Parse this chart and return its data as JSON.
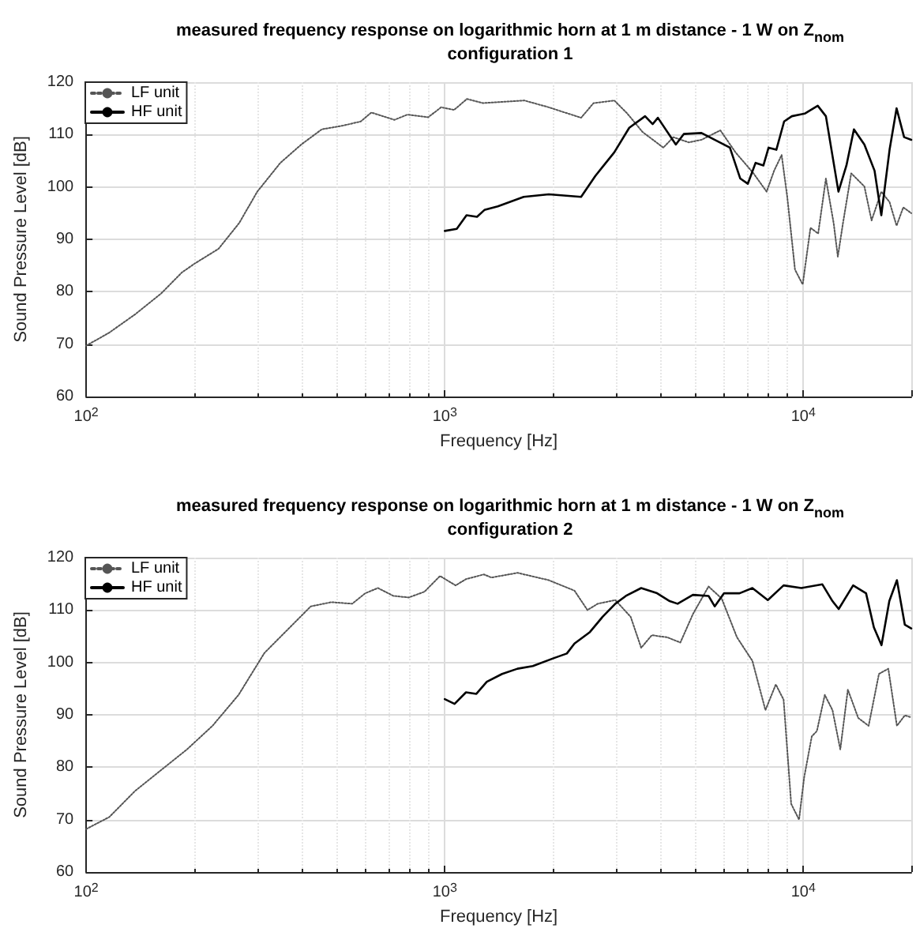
{
  "chart_data": [
    {
      "type": "line",
      "title": "measured frequency response on logarithmic horn at 1 m distance - 1 W on Z$_{nom}$",
      "subtitle": "configuration 1",
      "xlabel": "Frequency [Hz]",
      "ylabel": "Sound Pressure Level [dB]",
      "log": "x",
      "xlim": [
        100,
        20000
      ],
      "xticks": [
        {
          "value": 100,
          "label": "10$^{2}$"
        },
        {
          "value": 1000,
          "label": "10$^{3}$"
        },
        {
          "value": 10000,
          "label": "10$^{4}$"
        }
      ],
      "ylim": [
        60,
        120
      ],
      "yticks": [
        60,
        70,
        80,
        90,
        100,
        110,
        120
      ],
      "grid": true,
      "legend": "top left",
      "marker": "none",
      "series": [
        {
          "name": "LF unit",
          "color": "#555555",
          "line_style": "dotted",
          "x": [
            100,
            116,
            137,
            162,
            185,
            201,
            234,
            267,
            300,
            348,
            398,
            454,
            520,
            583,
            624,
            724,
            787,
            899,
            977,
            1062,
            1153,
            1276,
            1667,
            1950,
            2400,
            2600,
            2970,
            3230,
            3560,
            4070,
            4340,
            4790,
            5200,
            5870,
            6470,
            7260,
            7900,
            8290,
            8700,
            9020,
            9480,
            9960,
            10470,
            11000,
            11560,
            12150,
            12480,
            12900,
            13600,
            14800,
            15500,
            16500,
            17400,
            18200,
            19000,
            20000
          ],
          "values": [
            69.7,
            72.2,
            75.7,
            79.7,
            83.7,
            85.4,
            88.2,
            93.1,
            99.1,
            104.6,
            108.1,
            111,
            111.7,
            112.5,
            114.2,
            112.8,
            113.8,
            113.3,
            115.2,
            114.7,
            116.8,
            116,
            116.5,
            115.2,
            113.2,
            116,
            116.5,
            114,
            110.5,
            107.5,
            109.5,
            108.5,
            109,
            110.8,
            106.6,
            102.6,
            99.1,
            103.1,
            106.1,
            98.1,
            84.2,
            81.4,
            92.2,
            91.1,
            101.6,
            93.1,
            86.7,
            93.1,
            102.6,
            100.1,
            93.6,
            99.1,
            97.1,
            92.6,
            96.1,
            95
          ]
        },
        {
          "name": "HF unit",
          "color": "#000000",
          "line_style": "solid",
          "x": [
            1000,
            1080,
            1150,
            1230,
            1290,
            1406,
            1660,
            1950,
            2400,
            2630,
            2970,
            3270,
            3620,
            3800,
            3930,
            4410,
            4640,
            5200,
            6240,
            6670,
            7000,
            7360,
            7740,
            8000,
            8410,
            8840,
            9290,
            10090,
            10970,
            11560,
            12530,
            13190,
            13840,
            14800,
            15800,
            16500,
            17400,
            18200,
            19100,
            20000
          ],
          "values": [
            91.6,
            92,
            94.6,
            94.3,
            95.6,
            96.3,
            98.1,
            98.6,
            98.1,
            102.1,
            106.6,
            111.3,
            113.5,
            112,
            113.2,
            108.1,
            110.1,
            110.3,
            107.5,
            101.6,
            100.6,
            104.6,
            104.1,
            107.5,
            107.1,
            112.5,
            113.5,
            114,
            115.5,
            113.5,
            99.1,
            104.1,
            111,
            108.1,
            103.1,
            94.6,
            107.1,
            115,
            109.5,
            109
          ]
        }
      ]
    },
    {
      "type": "line",
      "title": "measured frequency response on logarithmic horn at 1 m distance - 1 W on Z$_{nom}$",
      "subtitle": "configuration 2",
      "xlabel": "Frequency [Hz]",
      "ylabel": "Sound Pressure Level [dB]",
      "log": "x",
      "xlim": [
        100,
        20000
      ],
      "xticks": [
        {
          "value": 100,
          "label": "10$^{2}$"
        },
        {
          "value": 1000,
          "label": "10$^{3}$"
        },
        {
          "value": 10000,
          "label": "10$^{4}$"
        }
      ],
      "ylim": [
        60,
        120
      ],
      "yticks": [
        60,
        70,
        80,
        90,
        100,
        110,
        120
      ],
      "grid": true,
      "legend": "top left",
      "marker": "none",
      "series": [
        {
          "name": "LF unit",
          "color": "#555555",
          "line_style": "dotted",
          "x": [
            100,
            116,
            137,
            162,
            191,
            225,
            266,
            314,
            370,
            423,
            483,
            552,
            600,
            651,
            719,
            794,
            878,
            970,
            1072,
            1146,
            1285,
            1350,
            1595,
            1950,
            2300,
            2500,
            2670,
            2990,
            3300,
            3530,
            3780,
            4170,
            4540,
            4920,
            5440,
            5920,
            6530,
            7210,
            7840,
            8380,
            8810,
            9250,
            9730,
            10050,
            10560,
            10910,
            11480,
            12060,
            12680,
            13310,
            14230,
            15210,
            16250,
            17260,
            18240,
            19190,
            20000
          ],
          "values": [
            68.2,
            70.5,
            75.5,
            79.5,
            83.4,
            87.9,
            93.8,
            101.8,
            106.7,
            110.7,
            111.5,
            111.2,
            113.2,
            114.2,
            112.7,
            112.4,
            113.5,
            116.5,
            114.7,
            115.9,
            116.8,
            116.2,
            117.1,
            115.7,
            113.7,
            110,
            111.2,
            111.9,
            108.7,
            102.8,
            105.2,
            104.8,
            103.8,
            109.2,
            114.5,
            112.2,
            104.8,
            100.3,
            90.9,
            95.8,
            92.9,
            73,
            70,
            78,
            85.9,
            86.9,
            93.8,
            90.9,
            83.4,
            94.8,
            89.4,
            87.9,
            97.8,
            98.8,
            87.9,
            89.9,
            89.5
          ]
        },
        {
          "name": "HF unit",
          "color": "#000000",
          "line_style": "solid",
          "x": [
            1000,
            1065,
            1146,
            1225,
            1310,
            1445,
            1595,
            1760,
            2010,
            2190,
            2300,
            2540,
            2755,
            2990,
            3200,
            3530,
            3910,
            4240,
            4460,
            4920,
            5440,
            5660,
            6010,
            6640,
            7210,
            7960,
            8810,
            9880,
            11300,
            12060,
            12550,
            13770,
            14960,
            15730,
            16520,
            17370,
            18240,
            19190,
            20000
          ],
          "values": [
            93,
            92.1,
            94.3,
            94,
            96.3,
            97.8,
            98.8,
            99.3,
            100.8,
            101.7,
            103.6,
            105.8,
            108.7,
            111.2,
            112.7,
            114.2,
            113.2,
            111.7,
            111.2,
            112.9,
            112.7,
            110.7,
            113.2,
            113.2,
            114.2,
            111.9,
            114.7,
            114.2,
            114.9,
            111.7,
            110.2,
            114.7,
            113.2,
            106.7,
            103.3,
            111.7,
            115.7,
            107.2,
            106.5
          ]
        }
      ]
    }
  ]
}
